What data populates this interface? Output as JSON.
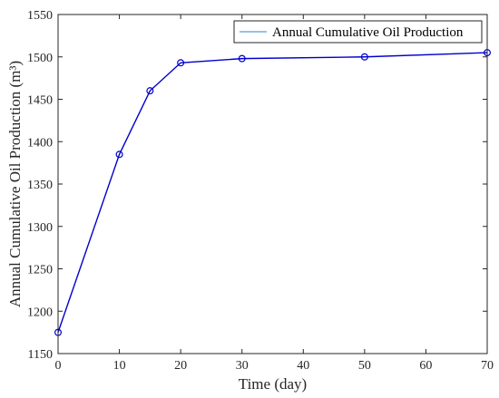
{
  "chart_data": {
    "type": "line",
    "title": "",
    "xlabel": "Time (day)",
    "ylabel": "Annual Cumulative Oil Production (m³)",
    "xlim": [
      0,
      70
    ],
    "ylim": [
      1150,
      1550
    ],
    "xticks": [
      0,
      10,
      20,
      30,
      40,
      50,
      60,
      70
    ],
    "yticks": [
      1150,
      1200,
      1250,
      1300,
      1350,
      1400,
      1450,
      1500,
      1550
    ],
    "grid": false,
    "legend_position": "top-right",
    "series": [
      {
        "name": "Annual Cumulative Oil Production",
        "color": "#0000cc",
        "legend_color": "#5b9bd5",
        "marker": "circle",
        "x": [
          0,
          10,
          15,
          20,
          30,
          50,
          70
        ],
        "y": [
          1175,
          1385,
          1460,
          1493,
          1498,
          1500,
          1505
        ]
      }
    ]
  }
}
